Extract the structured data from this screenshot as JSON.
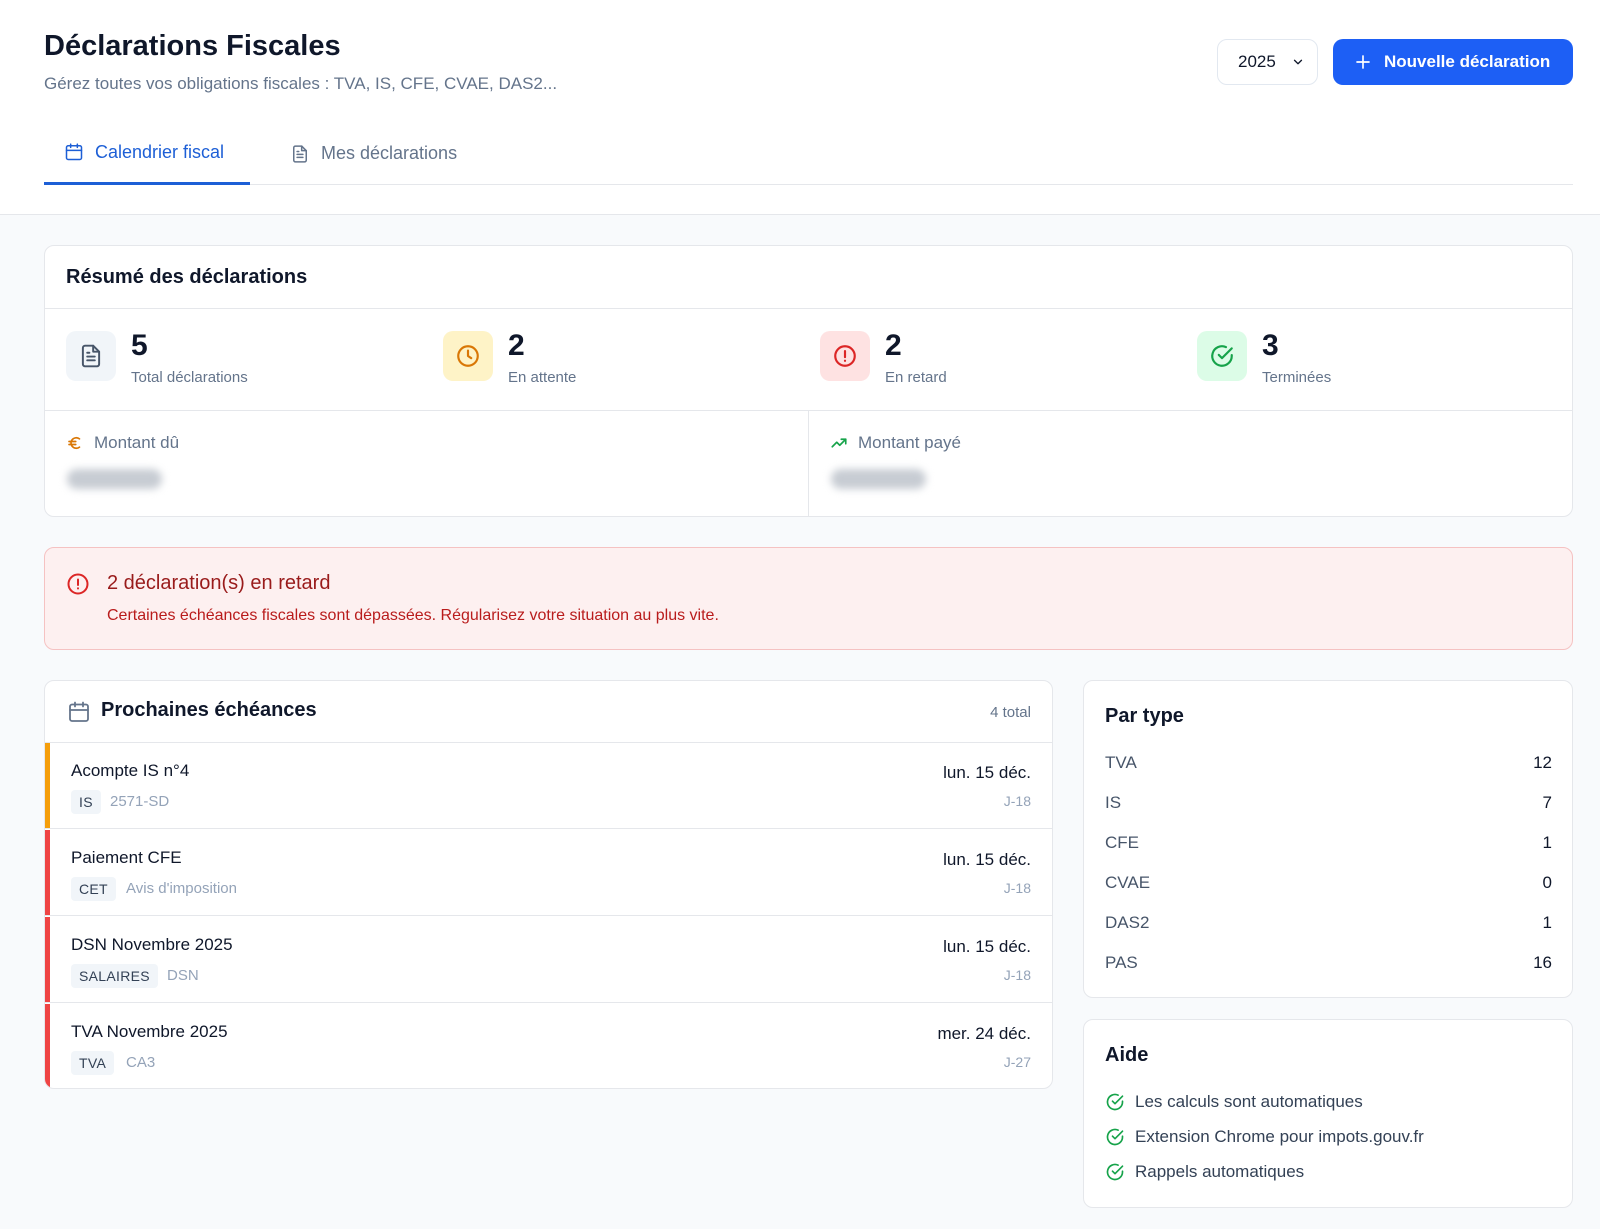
{
  "header": {
    "title": "Déclarations Fiscales",
    "subtitle": "Gérez toutes vos obligations fiscales : TVA, IS, CFE, CVAE, DAS2...",
    "year_selected": "2025",
    "new_button_label": "Nouvelle déclaration"
  },
  "tabs": [
    {
      "label": "Calendrier fiscal",
      "icon": "calendar-icon",
      "active": true
    },
    {
      "label": "Mes déclarations",
      "icon": "document-icon",
      "active": false
    }
  ],
  "summary": {
    "title": "Résumé des déclarations",
    "stats": [
      {
        "value": "5",
        "label": "Total déclarations",
        "icon": "document-icon",
        "color": "#475569",
        "bg": "#f1f5f9"
      },
      {
        "value": "2",
        "label": "En attente",
        "icon": "clock-icon",
        "color": "#d97706",
        "bg": "#fef3c7"
      },
      {
        "value": "2",
        "label": "En retard",
        "icon": "alert-circle-icon",
        "color": "#dc2626",
        "bg": "#fee2e2"
      },
      {
        "value": "3",
        "label": "Terminées",
        "icon": "check-circle-icon",
        "color": "#16a34a",
        "bg": "#dcfce7"
      }
    ],
    "amount_due_label": "Montant dû",
    "amount_paid_label": "Montant payé"
  },
  "alert": {
    "title": "2 déclaration(s) en retard",
    "text": "Certaines échéances fiscales sont dépassées. Régularisez votre situation au plus vite."
  },
  "deadlines": {
    "title": "Prochaines échéances",
    "count": "4 total",
    "items": [
      {
        "name": "Acompte IS n°4",
        "tag": "IS",
        "form": "2571-SD",
        "date": "lun. 15 déc.",
        "relative": "J-18",
        "status_color": "#f59e0b"
      },
      {
        "name": "Paiement CFE",
        "tag": "CET",
        "form": "Avis d'imposition",
        "date": "lun. 15 déc.",
        "relative": "J-18",
        "status_color": "#ef4444"
      },
      {
        "name": "DSN Novembre 2025",
        "tag": "SALAIRES",
        "form": "DSN",
        "date": "lun. 15 déc.",
        "relative": "J-18",
        "status_color": "#ef4444"
      },
      {
        "name": "TVA Novembre 2025",
        "tag": "TVA",
        "form": "CA3",
        "date": "mer. 24 déc.",
        "relative": "J-27",
        "status_color": "#ef4444"
      }
    ]
  },
  "by_type": {
    "title": "Par type",
    "rows": [
      {
        "type": "TVA",
        "count": "12"
      },
      {
        "type": "IS",
        "count": "7"
      },
      {
        "type": "CFE",
        "count": "1"
      },
      {
        "type": "CVAE",
        "count": "0"
      },
      {
        "type": "DAS2",
        "count": "1"
      },
      {
        "type": "PAS",
        "count": "16"
      }
    ]
  },
  "help": {
    "title": "Aide",
    "items": [
      "Les calculs sont automatiques",
      "Extension Chrome pour impots.gouv.fr",
      "Rappels automatiques"
    ]
  }
}
